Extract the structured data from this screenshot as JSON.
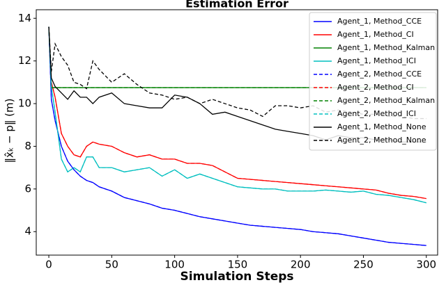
{
  "chart_data": {
    "type": "line",
    "title": "Estimation Error",
    "xlabel": "Simulation Steps",
    "ylabel": "‖x̂ₖ − p‖ (m)",
    "x": [
      0,
      2,
      5,
      10,
      15,
      20,
      25,
      30,
      35,
      40,
      50,
      60,
      70,
      80,
      90,
      100,
      110,
      120,
      130,
      140,
      150,
      160,
      170,
      180,
      190,
      200,
      210,
      220,
      230,
      240,
      250,
      260,
      270,
      280,
      290,
      300
    ],
    "xlim": [
      -10,
      309
    ],
    "xticks": [
      0,
      50,
      100,
      150,
      200,
      250,
      300
    ],
    "ylim": [
      2.9,
      14.4
    ],
    "yticks": [
      4,
      6,
      8,
      10,
      12,
      14
    ],
    "grid": false,
    "legend": "upper right",
    "series": [
      {
        "name": "Agent_1, Method_CCE",
        "color": "#0000ff",
        "linestyle": "solid",
        "values": [
          13.6,
          10.2,
          9.2,
          8.0,
          7.3,
          6.9,
          6.6,
          6.4,
          6.3,
          6.1,
          5.9,
          5.6,
          5.45,
          5.3,
          5.1,
          5.0,
          4.85,
          4.7,
          4.6,
          4.5,
          4.4,
          4.3,
          4.25,
          4.2,
          4.15,
          4.1,
          4.0,
          3.95,
          3.9,
          3.8,
          3.7,
          3.6,
          3.5,
          3.45,
          3.4,
          3.35
        ]
      },
      {
        "name": "Agent_1, Method_CI",
        "color": "#ff0000",
        "linestyle": "solid",
        "values": [
          13.6,
          11.0,
          10.3,
          8.6,
          8.0,
          7.6,
          7.5,
          8.0,
          8.2,
          8.1,
          8.0,
          7.7,
          7.5,
          7.6,
          7.4,
          7.4,
          7.2,
          7.2,
          7.1,
          6.8,
          6.5,
          6.45,
          6.4,
          6.35,
          6.3,
          6.25,
          6.2,
          6.15,
          6.1,
          6.05,
          6.0,
          5.95,
          5.8,
          5.7,
          5.65,
          5.55
        ]
      },
      {
        "name": "Agent_1, Method_Kalman",
        "color": "#008000",
        "linestyle": "solid",
        "values": [
          13.6,
          10.75,
          10.75,
          10.75,
          10.75,
          10.75,
          10.75,
          10.75,
          10.75,
          10.75,
          10.75,
          10.75,
          10.75,
          10.75,
          10.75,
          10.75,
          10.75,
          10.75,
          10.75,
          10.75,
          10.75,
          10.75,
          10.75,
          10.75,
          10.75,
          10.75,
          10.75,
          10.75,
          10.75,
          10.75,
          10.75,
          10.75,
          10.75,
          10.75,
          10.75,
          10.75
        ]
      },
      {
        "name": "Agent_1, Method_ICI",
        "color": "#00bfbf",
        "linestyle": "solid",
        "values": [
          13.6,
          10.8,
          9.6,
          7.4,
          6.8,
          7.0,
          6.8,
          7.5,
          7.5,
          7.0,
          7.0,
          6.8,
          6.9,
          7.0,
          6.6,
          6.9,
          6.5,
          6.7,
          6.5,
          6.3,
          6.1,
          6.05,
          6.0,
          6.0,
          5.9,
          5.9,
          5.9,
          5.95,
          5.9,
          5.85,
          5.9,
          5.75,
          5.7,
          5.6,
          5.5,
          5.35
        ]
      },
      {
        "name": "Agent_2, Method_CCE",
        "color": "#0000ff",
        "linestyle": "dashed",
        "values": [
          13.6,
          10.2,
          9.2,
          8.0,
          7.3,
          6.9,
          6.6,
          6.4,
          6.3,
          6.1,
          5.9,
          5.6,
          5.45,
          5.3,
          5.1,
          5.0,
          4.85,
          4.7,
          4.6,
          4.5,
          4.4,
          4.3,
          4.25,
          4.2,
          4.15,
          4.1,
          4.0,
          3.95,
          3.9,
          3.8,
          3.7,
          3.6,
          3.5,
          3.45,
          3.4,
          3.35
        ]
      },
      {
        "name": "Agent_2, Method_CI",
        "color": "#ff0000",
        "linestyle": "dashed",
        "values": [
          13.6,
          11.0,
          10.3,
          8.6,
          8.0,
          7.6,
          7.5,
          8.0,
          8.2,
          8.1,
          8.0,
          7.7,
          7.5,
          7.6,
          7.4,
          7.4,
          7.2,
          7.2,
          7.1,
          6.8,
          6.5,
          6.45,
          6.4,
          6.35,
          6.3,
          6.25,
          6.2,
          6.15,
          6.1,
          6.05,
          6.0,
          5.95,
          5.8,
          5.7,
          5.65,
          5.55
        ]
      },
      {
        "name": "Agent_2, Method_Kalman",
        "color": "#008000",
        "linestyle": "dashed",
        "values": [
          13.6,
          10.75,
          10.75,
          10.75,
          10.75,
          10.75,
          10.75,
          10.75,
          10.75,
          10.75,
          10.75,
          10.75,
          10.75,
          10.75,
          10.75,
          10.75,
          10.75,
          10.75,
          10.75,
          10.75,
          10.75,
          10.75,
          10.75,
          10.75,
          10.75,
          10.75,
          10.75,
          10.75,
          10.75,
          10.75,
          10.75,
          10.75,
          10.75,
          10.75,
          10.75,
          10.75
        ]
      },
      {
        "name": "Agent_2, Method_ICI",
        "color": "#00bfbf",
        "linestyle": "dashed",
        "values": [
          13.6,
          10.8,
          9.6,
          7.4,
          6.8,
          7.0,
          6.8,
          7.5,
          7.5,
          7.0,
          7.0,
          6.8,
          6.9,
          7.0,
          6.6,
          6.9,
          6.5,
          6.7,
          6.5,
          6.3,
          6.1,
          6.05,
          6.0,
          6.0,
          5.9,
          5.9,
          5.9,
          5.95,
          5.9,
          5.85,
          5.9,
          5.75,
          5.7,
          5.6,
          5.5,
          5.35
        ]
      },
      {
        "name": "Agent_1, Method_None",
        "color": "#000000",
        "linestyle": "solid",
        "values": [
          13.6,
          11.2,
          10.8,
          10.5,
          10.2,
          10.6,
          10.3,
          10.3,
          10.0,
          10.3,
          10.5,
          10.0,
          9.9,
          9.8,
          9.8,
          10.4,
          10.3,
          10.0,
          9.5,
          9.6,
          9.4,
          9.2,
          9.0,
          8.8,
          8.7,
          8.6,
          8.5,
          8.3,
          8.5,
          8.4,
          8.4,
          8.3,
          8.3,
          8.2,
          8.2,
          8.2
        ]
      },
      {
        "name": "Agent_2, Method_None",
        "color": "#000000",
        "linestyle": "dashed",
        "values": [
          13.6,
          11.5,
          12.8,
          12.2,
          11.8,
          11.0,
          10.9,
          10.7,
          12.0,
          11.6,
          11.0,
          11.4,
          10.9,
          10.5,
          10.4,
          10.2,
          10.3,
          10.0,
          10.2,
          10.0,
          9.8,
          9.7,
          9.4,
          9.9,
          9.9,
          9.8,
          9.9,
          9.6,
          9.7,
          9.6,
          9.5,
          9.5,
          9.4,
          9.4,
          9.3,
          9.3
        ]
      }
    ]
  }
}
